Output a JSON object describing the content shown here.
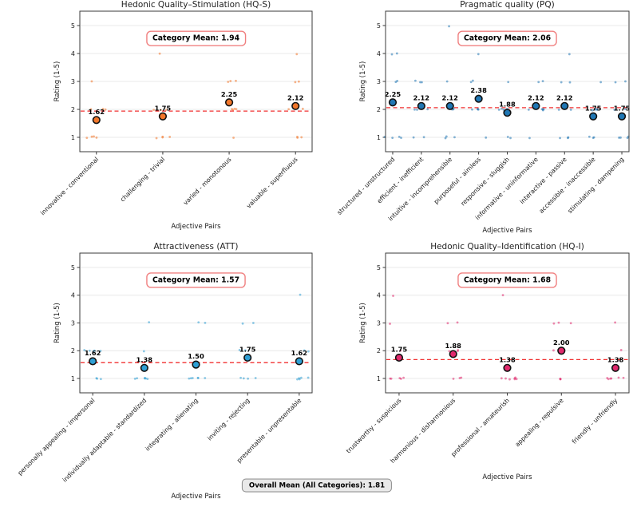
{
  "figure": {
    "overall_mean_label": "Overall Mean (All Categories): 1.81"
  },
  "chart_data": {
    "type": "scatter",
    "layout": "2x2 grid of strip plots with category means",
    "y_ticks": [
      1,
      2,
      3,
      4,
      5
    ],
    "ylim": [
      0.5,
      5.5
    ],
    "grid": "horizontal",
    "mean_line_style": "red dashed at category mean",
    "panels": [
      {
        "id": "hq-s",
        "title": "Hedonic Quality–Stimulation (HQ-S)",
        "xlabel": "Adjective Pairs",
        "ylabel": "Rating (1-5)",
        "category_mean": 1.94,
        "category_mean_label": "Category Mean: 1.94",
        "color": "#f2772a",
        "mean_line_color": "#f03030",
        "categories": [
          "innovative - conventional",
          "challenging - trivial",
          "varied - monotonous",
          "valuable - superfluous"
        ],
        "means": [
          1.62,
          1.75,
          2.25,
          2.12
        ],
        "ratings": [
          [
            1,
            1,
            1,
            1,
            2,
            2,
            2,
            3
          ],
          [
            1,
            1,
            1,
            1,
            2,
            2,
            2,
            4
          ],
          [
            1,
            2,
            2,
            2,
            2,
            3,
            3,
            3
          ],
          [
            1,
            1,
            1,
            2,
            2,
            3,
            3,
            4
          ]
        ]
      },
      {
        "id": "pq",
        "title": "Pragmatic quality (PQ)",
        "xlabel": "Adjective Pairs",
        "ylabel": "Rating (1-5)",
        "category_mean": 2.06,
        "category_mean_label": "Category Mean: 2.06",
        "color": "#2077b4",
        "mean_line_color": "#f03030",
        "categories": [
          "structured - unstructured",
          "efficient - inefficient",
          "intuitive - incomprehensible",
          "purposeful - aimless",
          "responsive - sluggish",
          "informative - uninformative",
          "interactive - passive",
          "accessible - inaccessible",
          "stimulating - dampening"
        ],
        "means": [
          2.25,
          2.12,
          2.12,
          2.38,
          1.88,
          2.12,
          2.12,
          1.75,
          1.75
        ],
        "ratings": [
          [
            1,
            1,
            1,
            1,
            3,
            3,
            4,
            4
          ],
          [
            1,
            1,
            2,
            2,
            2,
            3,
            3,
            3
          ],
          [
            1,
            1,
            1,
            2,
            2,
            2,
            3,
            5
          ],
          [
            1,
            2,
            2,
            2,
            2,
            3,
            3,
            4
          ],
          [
            1,
            1,
            2,
            2,
            2,
            2,
            2,
            3
          ],
          [
            1,
            2,
            2,
            2,
            2,
            2,
            3,
            3
          ],
          [
            1,
            1,
            1,
            2,
            2,
            3,
            3,
            4
          ],
          [
            1,
            1,
            1,
            2,
            2,
            2,
            2,
            3
          ],
          [
            1,
            1,
            1,
            1,
            2,
            2,
            3,
            3
          ]
        ]
      },
      {
        "id": "att",
        "title": "Attractiveness (ATT)",
        "xlabel": "Adjective Pairs",
        "ylabel": "Rating (1-5)",
        "category_mean": 1.57,
        "category_mean_label": "Category Mean: 1.57",
        "color": "#2f9fd4",
        "mean_line_color": "#f03030",
        "categories": [
          "personally appealing - impersonal",
          "individually adaptable - standardized",
          "integrating - alienating",
          "inviting - rejecting",
          "presentable - unpresentable"
        ],
        "means": [
          1.62,
          1.38,
          1.5,
          1.75,
          1.62
        ],
        "ratings": [
          [
            1,
            1,
            1,
            2,
            2,
            2,
            2,
            2
          ],
          [
            1,
            1,
            1,
            1,
            1,
            1,
            2,
            3
          ],
          [
            1,
            1,
            1,
            1,
            1,
            1,
            3,
            3
          ],
          [
            1,
            1,
            1,
            1,
            2,
            2,
            3,
            3
          ],
          [
            1,
            1,
            1,
            1,
            1,
            2,
            2,
            4
          ]
        ]
      },
      {
        "id": "hq-i",
        "title": "Hedonic Quality–Identification (HQ-I)",
        "xlabel": "Adjective Pairs",
        "ylabel": "Rating (1-5)",
        "category_mean": 1.68,
        "category_mean_label": "Category Mean: 1.68",
        "color": "#e02a6d",
        "mean_line_color": "#f03030",
        "categories": [
          "trustworthy - suspicious",
          "harmonious - disharmonious",
          "professional - amateurish",
          "appealing - repulsive",
          "friendly - unfriendly"
        ],
        "means": [
          1.75,
          1.88,
          1.38,
          2.0,
          1.38
        ],
        "ratings": [
          [
            1,
            1,
            1,
            1,
            1,
            2,
            3,
            4
          ],
          [
            1,
            1,
            1,
            2,
            2,
            2,
            3,
            3
          ],
          [
            1,
            1,
            1,
            1,
            1,
            1,
            1,
            4
          ],
          [
            1,
            1,
            1,
            2,
            2,
            3,
            3,
            3
          ],
          [
            1,
            1,
            1,
            1,
            1,
            1,
            2,
            3
          ]
        ]
      }
    ]
  }
}
